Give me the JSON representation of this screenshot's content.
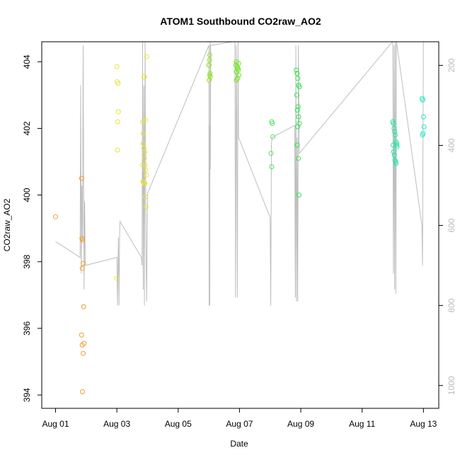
{
  "chart_data": {
    "type": "scatter",
    "title": "ATOM1 Southbound CO2raw_AO2",
    "xlabel": "Date",
    "ylabel": "CO2raw_AO2",
    "x_tick_labels": [
      "Aug 01",
      "Aug 03",
      "Aug 05",
      "Aug 07",
      "Aug 09",
      "Aug 11",
      "Aug 13"
    ],
    "x_tick_days": [
      1,
      3,
      5,
      7,
      9,
      11,
      13
    ],
    "xlim": [
      0.55,
      13.5
    ],
    "ylim": [
      393.6,
      404.6
    ],
    "y_ticks": [
      394,
      396,
      398,
      400,
      402,
      404
    ],
    "y_right_ticks": [
      200,
      400,
      600,
      800,
      1000
    ],
    "y_right_lim": [
      141,
      1057
    ],
    "grid": false,
    "colors": {
      "points_day1": "#f39c2e",
      "points_day3": "#e6e637",
      "points_day6": "#94e81f",
      "points_day7": "#6de81f",
      "points_day8": "#4fe85a",
      "points_day9": "#31e84a",
      "points_day12": "#23e8a6",
      "points_day13": "#23e8c8",
      "right_series": "#bebebe"
    },
    "series": [
      {
        "color_key": "points_day1",
        "x": [
          1.0,
          1.85,
          1.87,
          1.88,
          1.9,
          1.92,
          1.93,
          1.85,
          1.87,
          1.9,
          1.88,
          1.86
        ],
        "y": [
          399.35,
          400.5,
          397.8,
          398.65,
          397.95,
          396.65,
          395.55,
          395.8,
          395.5,
          395.25,
          394.1,
          398.7
        ]
      },
      {
        "color_key": "points_day3",
        "x": [
          3.0,
          3.02,
          3.03,
          3.05,
          3.04,
          3.01,
          3.0,
          3.84,
          3.86,
          3.88,
          3.9,
          3.92,
          3.94,
          3.96,
          3.85,
          3.87,
          3.89,
          3.91,
          3.93,
          3.95,
          3.88,
          3.9,
          3.86,
          3.92,
          3.94,
          3.84,
          3.97
        ],
        "y": [
          397.5,
          401.35,
          402.2,
          402.5,
          403.35,
          403.4,
          403.85,
          402.2,
          401.85,
          401.4,
          401.1,
          400.9,
          400.75,
          400.6,
          400.4,
          400.4,
          400.35,
          400.35,
          399.95,
          399.65,
          403.55,
          403.55,
          401.55,
          401.3,
          402.25,
          400.9,
          404.15
        ]
      },
      {
        "color_key": "points_day6",
        "x": [
          6.0,
          6.01,
          6.02,
          6.03,
          6.04,
          6.05,
          6.01,
          6.03
        ],
        "y": [
          403.9,
          403.9,
          404.05,
          404.2,
          403.65,
          403.55,
          403.45,
          403.6
        ]
      },
      {
        "color_key": "points_day7",
        "x": [
          6.88,
          6.9,
          6.92,
          6.94,
          6.96,
          6.98,
          6.9,
          6.94,
          6.89,
          6.95,
          6.97
        ],
        "y": [
          403.9,
          404.0,
          403.85,
          403.8,
          403.75,
          403.6,
          403.45,
          403.5,
          403.7,
          403.8,
          403.95
        ]
      },
      {
        "color_key": "points_day8",
        "x": [
          8.05,
          8.07,
          8.09,
          8.03,
          8.05
        ],
        "y": [
          402.2,
          402.15,
          401.75,
          401.25,
          400.85
        ]
      },
      {
        "color_key": "points_day9",
        "x": [
          8.85,
          8.88,
          8.9,
          8.93,
          8.95,
          8.87,
          8.89,
          8.91,
          8.93,
          8.95,
          8.88,
          8.92,
          8.94,
          8.9
        ],
        "y": [
          403.75,
          403.65,
          403.5,
          403.3,
          403.25,
          403.0,
          402.55,
          402.65,
          402.35,
          402.15,
          401.5,
          401.1,
          400.0,
          402.05
        ]
      },
      {
        "color_key": "points_day12",
        "x": [
          12.0,
          12.02,
          12.04,
          12.06,
          12.08,
          12.1,
          12.12,
          12.14,
          12.03,
          12.05,
          12.07,
          12.09,
          12.11,
          12.01,
          12.13
        ],
        "y": [
          402.2,
          402.15,
          402.0,
          401.9,
          401.8,
          401.6,
          401.5,
          401.45,
          401.3,
          401.2,
          401.05,
          401.0,
          400.95,
          401.5,
          401.55
        ]
      },
      {
        "color_key": "points_day13",
        "x": [
          12.96,
          12.98,
          13.0,
          13.02,
          12.97,
          12.99
        ],
        "y": [
          402.9,
          402.85,
          402.35,
          402.05,
          401.8,
          401.85
        ]
      }
    ],
    "right_series": {
      "color_key": "right_series",
      "x": [
        1.0,
        1.8,
        1.82,
        1.84,
        1.86,
        1.88,
        1.9,
        1.92,
        1.93,
        1.95,
        1.97,
        3.0,
        3.02,
        3.05,
        3.07,
        3.09,
        3.1,
        3.8,
        3.82,
        3.84,
        3.86,
        3.88,
        3.9,
        3.92,
        3.95,
        3.97,
        4.0,
        6.0,
        6.01,
        6.02,
        6.03,
        6.04,
        6.05,
        6.06,
        6.85,
        6.87,
        6.89,
        6.91,
        6.93,
        6.95,
        6.97,
        8.0,
        8.02,
        8.04,
        8.06,
        8.8,
        8.82,
        8.84,
        8.86,
        8.88,
        8.9,
        8.92,
        8.95,
        12.0,
        12.02,
        12.04,
        12.06,
        12.08,
        12.1,
        12.12,
        12.95,
        12.97,
        13.0
      ],
      "y": [
        640,
        680,
        250,
        720,
        500,
        640,
        150,
        520,
        760,
        540,
        700,
        680,
        800,
        630,
        800,
        630,
        590,
        680,
        700,
        140,
        760,
        250,
        800,
        140,
        640,
        790,
        520,
        150,
        800,
        350,
        800,
        140,
        460,
        150,
        140,
        780,
        150,
        360,
        780,
        140,
        380,
        580,
        800,
        400,
        380,
        350,
        780,
        150,
        790,
        380,
        790,
        150,
        420,
        140,
        720,
        150,
        760,
        140,
        770,
        140,
        600,
        700,
        140
      ]
    }
  }
}
